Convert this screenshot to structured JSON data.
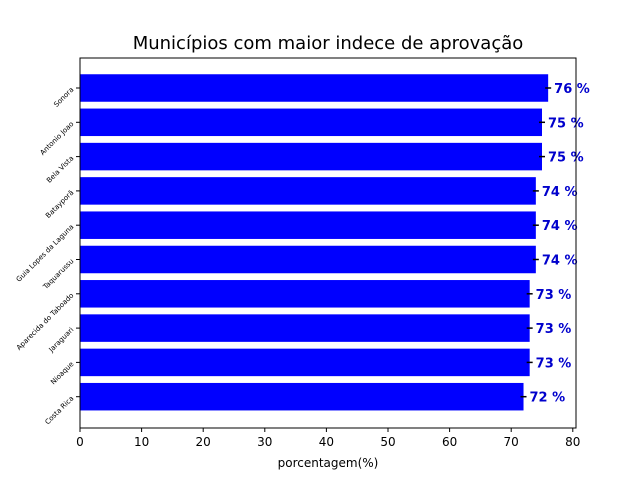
{
  "chart_data": {
    "type": "bar",
    "orientation": "horizontal",
    "title": "Municípios com maior indece de aprovação",
    "xlabel": "porcentagem(%)",
    "ylabel": "",
    "xlim": [
      0,
      80
    ],
    "xticks": [
      0,
      10,
      20,
      30,
      40,
      50,
      60,
      70,
      80
    ],
    "categories": [
      "Sonora",
      "Antonio Joao",
      "Bela Vista",
      "Batayporã",
      "Guia Lopes da Laguna",
      "Taquarussu",
      "Aparecida do Taboado",
      "Jaraguari",
      "Nioaque",
      "Costa Rica"
    ],
    "values": [
      76,
      75,
      75,
      74,
      74,
      74,
      73,
      73,
      73,
      72
    ],
    "data_labels": [
      "76 %",
      "75 %",
      "75 %",
      "74 %",
      "74 %",
      "74 %",
      "73 %",
      "73 %",
      "73 %",
      "72 %"
    ],
    "bar_color": "#0000ff",
    "label_color": "#0000cc",
    "grid": false
  }
}
